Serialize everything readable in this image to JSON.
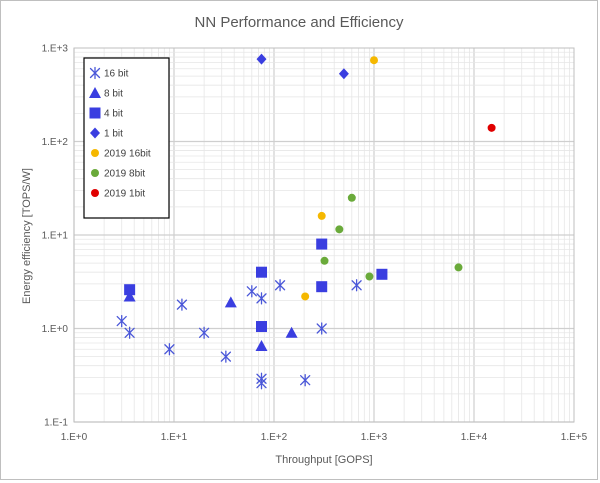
{
  "chart_data": {
    "type": "scatter",
    "title": "NN Performance and Efficiency",
    "xlabel": "Throughput [GOPS]",
    "ylabel": "Energy efficiency [TOPS/W]",
    "x_scale": "log",
    "y_scale": "log",
    "xlim": [
      1,
      100000
    ],
    "ylim": [
      0.1,
      1000
    ],
    "x_ticks": [
      "1.E+0",
      "1.E+1",
      "1.E+2",
      "1.E+3",
      "1.E+4",
      "1.E+5"
    ],
    "y_ticks": [
      "1.E-1",
      "1.E+0",
      "1.E+1",
      "1.E+2",
      "1.E+3"
    ],
    "grid": true,
    "legend_position": "top-left",
    "series": [
      {
        "name": "16 bit",
        "marker": "asterisk",
        "color": "#4a57d8",
        "points": [
          [
            3,
            1.2
          ],
          [
            3.6,
            0.9
          ],
          [
            9,
            0.6
          ],
          [
            12,
            1.8
          ],
          [
            20,
            0.9
          ],
          [
            33,
            0.5
          ],
          [
            60,
            2.5
          ],
          [
            75,
            2.1
          ],
          [
            75,
            0.29
          ],
          [
            75,
            0.26
          ],
          [
            115,
            2.9
          ],
          [
            205,
            0.28
          ],
          [
            300,
            1.0
          ],
          [
            670,
            2.9
          ]
        ]
      },
      {
        "name": "8 bit",
        "marker": "triangle",
        "color": "#3a3ee0",
        "points": [
          [
            3.6,
            2.2
          ],
          [
            37,
            1.9
          ],
          [
            75,
            0.65
          ],
          [
            150,
            0.9
          ]
        ]
      },
      {
        "name": "4 bit",
        "marker": "square",
        "color": "#3a3ee0",
        "points": [
          [
            3.6,
            2.6
          ],
          [
            75,
            4.0
          ],
          [
            75,
            1.05
          ],
          [
            300,
            8.0
          ],
          [
            300,
            2.8
          ],
          [
            1200,
            3.8
          ]
        ]
      },
      {
        "name": "1 bit",
        "marker": "diamond",
        "color": "#3a3ee0",
        "points": [
          [
            75,
            760
          ],
          [
            500,
            530
          ]
        ]
      },
      {
        "name": "2019 16bit",
        "marker": "circle",
        "color": "#f5b800",
        "points": [
          [
            205,
            2.2
          ],
          [
            300,
            16
          ],
          [
            1000,
            740
          ]
        ]
      },
      {
        "name": "2019 8bit",
        "marker": "circle",
        "color": "#6aaa3a",
        "points": [
          [
            320,
            5.3
          ],
          [
            450,
            11.5
          ],
          [
            600,
            25
          ],
          [
            900,
            3.6
          ],
          [
            7000,
            4.5
          ]
        ]
      },
      {
        "name": "2019 1bit",
        "marker": "circle",
        "color": "#e00000",
        "points": [
          [
            15000,
            140
          ]
        ]
      }
    ]
  }
}
